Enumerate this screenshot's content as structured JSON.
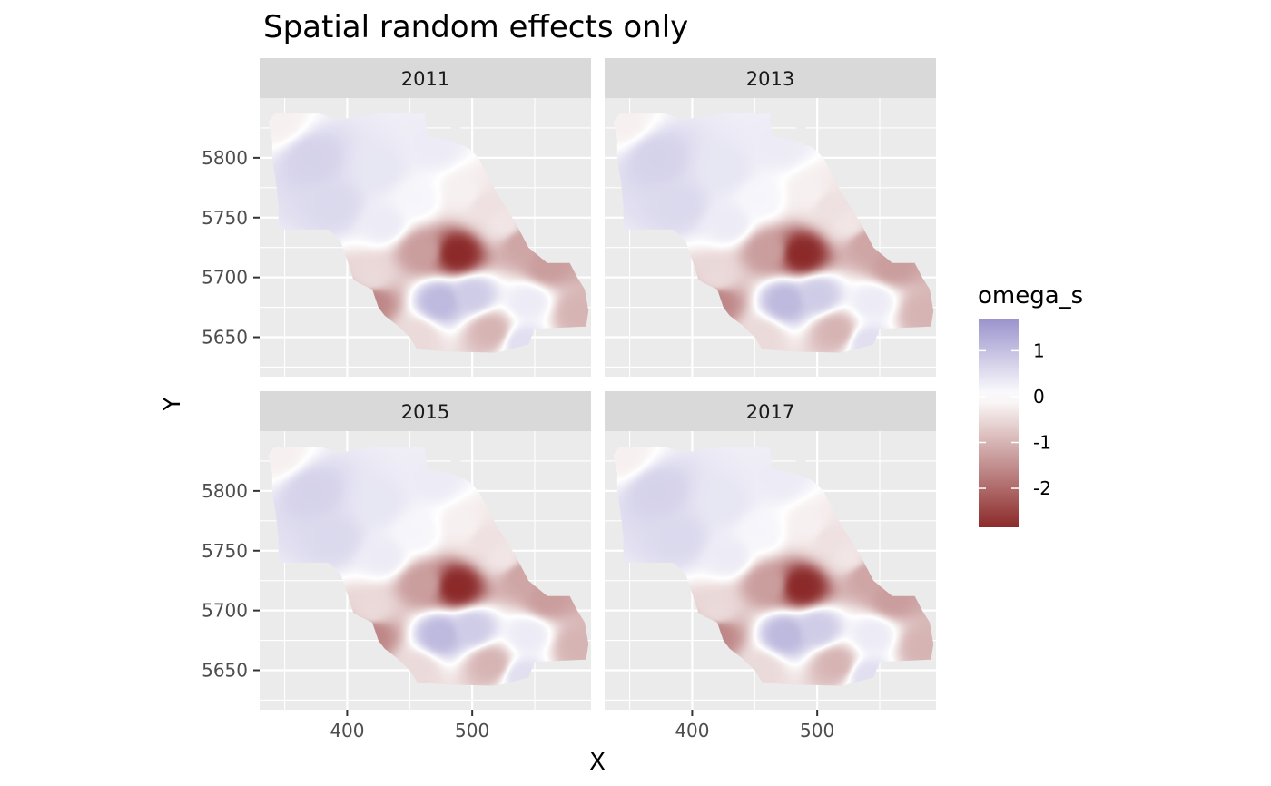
{
  "chart_data": {
    "type": "heatmap",
    "title": "Spatial random effects only",
    "xlabel": "X",
    "ylabel": "Y",
    "facet_labels": [
      "2011",
      "2013",
      "2015",
      "2017"
    ],
    "xlim": [
      330,
      595
    ],
    "ylim": [
      5617,
      5850
    ],
    "x_ticks": [
      {
        "value": 400,
        "label": "400"
      },
      {
        "value": 500,
        "label": "500"
      }
    ],
    "y_ticks": [
      {
        "value": 5650,
        "label": "5650"
      },
      {
        "value": 5700,
        "label": "5700"
      },
      {
        "value": 5750,
        "label": "5750"
      },
      {
        "value": 5800,
        "label": "5800"
      }
    ],
    "fill_variable": "omega_s",
    "fill_range": [
      -2.85,
      1.7
    ],
    "colors": {
      "low": "#8c2a2a",
      "mid": "#ffffff",
      "high": "#9a93cc",
      "panel_bg": "#ebebeb",
      "strip_bg": "#d9d9d9",
      "grid": "#ffffff"
    },
    "legend": {
      "title": "omega_s",
      "position": "right",
      "breaks": [
        {
          "value": 1,
          "label": "1"
        },
        {
          "value": 0,
          "label": "0"
        },
        {
          "value": -1,
          "label": "-1"
        },
        {
          "value": -2,
          "label": "-2"
        }
      ]
    },
    "region_outline": [
      [
        342,
        5837
      ],
      [
        378,
        5837
      ],
      [
        393,
        5832
      ],
      [
        425,
        5837
      ],
      [
        462,
        5837
      ],
      [
        464,
        5818
      ],
      [
        480,
        5815
      ],
      [
        490,
        5812
      ],
      [
        497,
        5808
      ],
      [
        505,
        5800
      ],
      [
        520,
        5770
      ],
      [
        535,
        5745
      ],
      [
        545,
        5725
      ],
      [
        560,
        5712
      ],
      [
        578,
        5712
      ],
      [
        584,
        5700
      ],
      [
        590,
        5690
      ],
      [
        593,
        5672
      ],
      [
        591,
        5659
      ],
      [
        550,
        5657
      ],
      [
        545,
        5644
      ],
      [
        520,
        5637
      ],
      [
        480,
        5638
      ],
      [
        456,
        5640
      ],
      [
        450,
        5650
      ],
      [
        440,
        5660
      ],
      [
        430,
        5668
      ],
      [
        425,
        5675
      ],
      [
        420,
        5690
      ],
      [
        410,
        5695
      ],
      [
        405,
        5698
      ],
      [
        402,
        5708
      ],
      [
        395,
        5730
      ],
      [
        385,
        5740
      ],
      [
        365,
        5740
      ],
      [
        345,
        5740
      ],
      [
        345,
        5760
      ],
      [
        343,
        5780
      ],
      [
        340,
        5800
      ],
      [
        340,
        5815
      ],
      [
        337,
        5830
      ]
    ],
    "hole": [
      [
        482,
        5837
      ],
      [
        490,
        5837
      ],
      [
        492,
        5810
      ],
      [
        484,
        5814
      ]
    ],
    "field_nodes": [
      {
        "x": 372,
        "y": 5800,
        "value": 0.7
      },
      {
        "x": 425,
        "y": 5790,
        "value": 0.4
      },
      {
        "x": 455,
        "y": 5765,
        "value": 0.15
      },
      {
        "x": 345,
        "y": 5830,
        "value": -0.2
      },
      {
        "x": 470,
        "y": 5810,
        "value": 0.3
      },
      {
        "x": 495,
        "y": 5770,
        "value": -0.2
      },
      {
        "x": 510,
        "y": 5760,
        "value": -0.4
      },
      {
        "x": 525,
        "y": 5745,
        "value": -0.35
      },
      {
        "x": 488,
        "y": 5720,
        "value": -2.85
      },
      {
        "x": 460,
        "y": 5722,
        "value": -1.3
      },
      {
        "x": 540,
        "y": 5728,
        "value": -1.2
      },
      {
        "x": 560,
        "y": 5710,
        "value": -1.3
      },
      {
        "x": 420,
        "y": 5680,
        "value": -1.6
      },
      {
        "x": 420,
        "y": 5700,
        "value": -0.5
      },
      {
        "x": 475,
        "y": 5680,
        "value": 1.1
      },
      {
        "x": 500,
        "y": 5685,
        "value": 0.8
      },
      {
        "x": 545,
        "y": 5680,
        "value": 0.3
      },
      {
        "x": 585,
        "y": 5670,
        "value": -1.0
      },
      {
        "x": 515,
        "y": 5655,
        "value": -1.0
      },
      {
        "x": 455,
        "y": 5650,
        "value": -0.5
      },
      {
        "x": 540,
        "y": 5645,
        "value": 0.5
      },
      {
        "x": 390,
        "y": 5760,
        "value": 0.6
      },
      {
        "x": 430,
        "y": 5745,
        "value": 0.3
      }
    ]
  }
}
